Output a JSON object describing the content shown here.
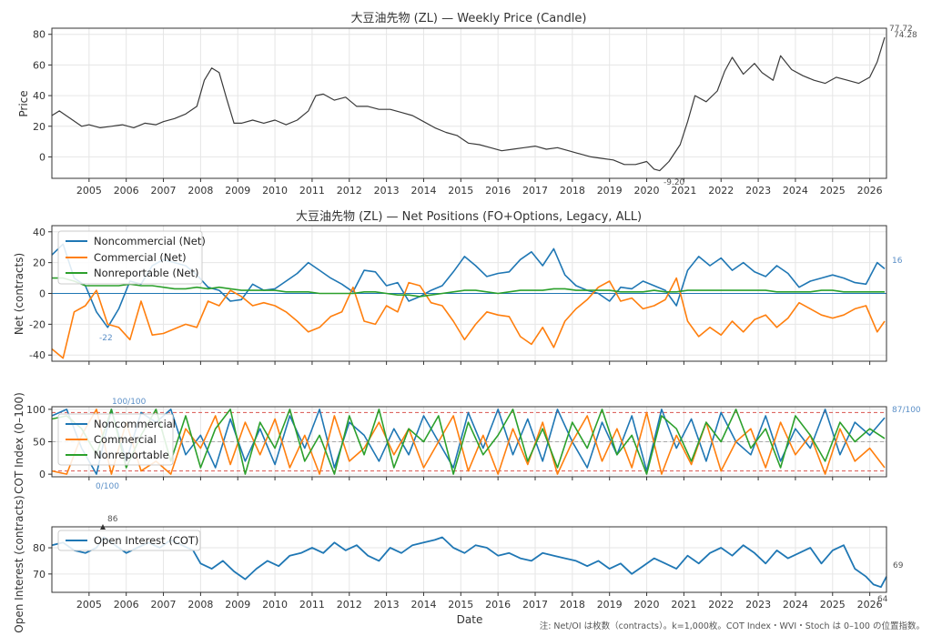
{
  "chart_data": [
    {
      "type": "line",
      "title": "大豆油先物 (ZL) — Weekly Price (Candle)",
      "xlabel": "",
      "ylabel": "Price",
      "x_ticks": [
        "2005",
        "2006",
        "2007",
        "2008",
        "2009",
        "2010",
        "2011",
        "2012",
        "2013",
        "2014",
        "2015",
        "2016",
        "2017",
        "2018",
        "2019",
        "2020",
        "2021",
        "2022",
        "2023",
        "2024",
        "2025",
        "2026"
      ],
      "y_ticks": [
        0,
        20,
        40,
        60,
        80
      ],
      "xlim": [
        2004.0,
        2026.45
      ],
      "ylim": [
        -14,
        84
      ],
      "grid": true,
      "series": [
        {
          "color": "#3a3a3a",
          "x": [
            2004.0,
            2004.2,
            2004.5,
            2004.8,
            2005.0,
            2005.3,
            2005.6,
            2005.9,
            2006.2,
            2006.5,
            2006.8,
            2007.0,
            2007.3,
            2007.6,
            2007.9,
            2008.1,
            2008.3,
            2008.5,
            2008.7,
            2008.9,
            2009.1,
            2009.4,
            2009.7,
            2010.0,
            2010.3,
            2010.6,
            2010.9,
            2011.1,
            2011.3,
            2011.6,
            2011.9,
            2012.2,
            2012.5,
            2012.8,
            2013.1,
            2013.4,
            2013.7,
            2014.0,
            2014.3,
            2014.6,
            2014.9,
            2015.2,
            2015.5,
            2015.8,
            2016.1,
            2016.4,
            2016.7,
            2017.0,
            2017.3,
            2017.6,
            2017.9,
            2018.2,
            2018.5,
            2018.8,
            2019.1,
            2019.4,
            2019.7,
            2020.0,
            2020.2,
            2020.35,
            2020.6,
            2020.9,
            2021.1,
            2021.3,
            2021.6,
            2021.9,
            2022.1,
            2022.3,
            2022.6,
            2022.9,
            2023.1,
            2023.4,
            2023.6,
            2023.9,
            2024.2,
            2024.5,
            2024.8,
            2025.1,
            2025.4,
            2025.7,
            2026.0,
            2026.2,
            2026.4
          ],
          "y": [
            27,
            30,
            25,
            20,
            21,
            19,
            20,
            21,
            19,
            22,
            21,
            23,
            25,
            28,
            33,
            50,
            58,
            55,
            38,
            22,
            22,
            24,
            22,
            24,
            21,
            24,
            30,
            40,
            41,
            37,
            39,
            33,
            33,
            31,
            31,
            29,
            27,
            23,
            19,
            16,
            14,
            9,
            8,
            6,
            4,
            5,
            6,
            7,
            5,
            6,
            4,
            2,
            0,
            -1,
            -2,
            -5,
            -5,
            -3,
            -8,
            -9,
            -3,
            8,
            23,
            40,
            36,
            43,
            56,
            65,
            54,
            61,
            55,
            50,
            66,
            57,
            53,
            50,
            48,
            52,
            50,
            48,
            52,
            62,
            78
          ]
        }
      ],
      "annotations": [
        "77.72",
        "74.28",
        "-9.20"
      ]
    },
    {
      "type": "line",
      "title": "大豆油先物 (ZL) — Net Positions (FO+Options, Legacy, ALL)",
      "ylabel": "Net (contracts)",
      "y_ticks": [
        -40,
        -20,
        0,
        20,
        40
      ],
      "ylim": [
        -44,
        44
      ],
      "grid": true,
      "legend": "top-left",
      "x": [
        2004.0,
        2004.3,
        2004.6,
        2004.9,
        2005.2,
        2005.5,
        2005.8,
        2006.1,
        2006.4,
        2006.7,
        2007.0,
        2007.3,
        2007.6,
        2007.9,
        2008.2,
        2008.5,
        2008.8,
        2009.1,
        2009.4,
        2009.7,
        2010.0,
        2010.3,
        2010.6,
        2010.9,
        2011.2,
        2011.5,
        2011.8,
        2012.1,
        2012.4,
        2012.7,
        2013.0,
        2013.3,
        2013.6,
        2013.9,
        2014.2,
        2014.5,
        2014.8,
        2015.1,
        2015.4,
        2015.7,
        2016.0,
        2016.3,
        2016.6,
        2016.9,
        2017.2,
        2017.5,
        2017.8,
        2018.1,
        2018.4,
        2018.7,
        2019.0,
        2019.3,
        2019.6,
        2019.9,
        2020.2,
        2020.5,
        2020.8,
        2021.1,
        2021.4,
        2021.7,
        2022.0,
        2022.3,
        2022.6,
        2022.9,
        2023.2,
        2023.5,
        2023.8,
        2024.1,
        2024.4,
        2024.7,
        2025.0,
        2025.3,
        2025.6,
        2025.9,
        2026.2,
        2026.4
      ],
      "series": [
        {
          "name": "Noncommercial (Net)",
          "color": "#1f77b4",
          "values": [
            25,
            32,
            10,
            5,
            -12,
            -22,
            -10,
            8,
            6,
            18,
            22,
            20,
            18,
            12,
            4,
            2,
            -5,
            -4,
            6,
            2,
            3,
            8,
            13,
            20,
            15,
            10,
            6,
            1,
            15,
            14,
            5,
            7,
            -5,
            -2,
            2,
            5,
            14,
            24,
            18,
            11,
            13,
            14,
            22,
            27,
            18,
            29,
            12,
            5,
            2,
            0,
            -5,
            4,
            3,
            8,
            5,
            2,
            -8,
            15,
            24,
            18,
            23,
            15,
            20,
            14,
            11,
            18,
            13,
            4,
            8,
            10,
            12,
            10,
            7,
            6,
            20,
            16
          ]
        },
        {
          "name": "Commercial (Net)",
          "color": "#ff7f0e",
          "values": [
            -36,
            -42,
            -12,
            -8,
            2,
            -20,
            -22,
            -30,
            -5,
            -27,
            -26,
            -23,
            -20,
            -22,
            -5,
            -8,
            2,
            -2,
            -8,
            -6,
            -8,
            -12,
            -18,
            -25,
            -22,
            -15,
            -12,
            4,
            -18,
            -20,
            -8,
            -12,
            7,
            5,
            -6,
            -8,
            -18,
            -30,
            -20,
            -12,
            -14,
            -15,
            -28,
            -33,
            -22,
            -35,
            -18,
            -10,
            -4,
            4,
            8,
            -5,
            -3,
            -10,
            -8,
            -4,
            10,
            -18,
            -28,
            -22,
            -27,
            -18,
            -25,
            -17,
            -14,
            -22,
            -16,
            -6,
            -10,
            -14,
            -16,
            -14,
            -10,
            -8,
            -25,
            -18
          ]
        },
        {
          "name": "Nonreportable (Net)",
          "color": "#2ca02c",
          "values": [
            10,
            10,
            8,
            5,
            5,
            5,
            5,
            6,
            5,
            5,
            4,
            3,
            3,
            4,
            3,
            4,
            3,
            2,
            2,
            2,
            2,
            1,
            1,
            1,
            0,
            0,
            0,
            0,
            1,
            1,
            0,
            -1,
            -1,
            -2,
            -1,
            0,
            1,
            2,
            2,
            1,
            0,
            1,
            2,
            2,
            2,
            3,
            3,
            2,
            2,
            2,
            2,
            1,
            1,
            1,
            2,
            1,
            1,
            2,
            2,
            2,
            2,
            2,
            2,
            2,
            2,
            1,
            1,
            1,
            1,
            2,
            2,
            1,
            1,
            1,
            1,
            1
          ]
        }
      ],
      "annotations": [
        "16",
        "-22"
      ]
    },
    {
      "type": "line",
      "title": "",
      "ylabel": "COT Index (0–100)",
      "y_ticks": [
        0,
        50,
        100
      ],
      "ylim": [
        -4,
        104
      ],
      "grid": true,
      "legend": "top-left",
      "reference_lines": [
        95,
        50,
        5
      ],
      "x": [
        2004.0,
        2004.4,
        2004.8,
        2005.2,
        2005.6,
        2006.0,
        2006.4,
        2006.8,
        2007.2,
        2007.6,
        2008.0,
        2008.4,
        2008.8,
        2009.2,
        2009.6,
        2010.0,
        2010.4,
        2010.8,
        2011.2,
        2011.6,
        2012.0,
        2012.4,
        2012.8,
        2013.2,
        2013.6,
        2014.0,
        2014.4,
        2014.8,
        2015.2,
        2015.6,
        2016.0,
        2016.4,
        2016.8,
        2017.2,
        2017.6,
        2018.0,
        2018.4,
        2018.8,
        2019.2,
        2019.6,
        2020.0,
        2020.4,
        2020.8,
        2021.2,
        2021.6,
        2022.0,
        2022.4,
        2022.8,
        2023.2,
        2023.6,
        2024.0,
        2024.4,
        2024.8,
        2025.2,
        2025.6,
        2026.0,
        2026.4
      ],
      "series": [
        {
          "name": "Noncommercial",
          "color": "#1f77b4",
          "values": [
            90,
            100,
            40,
            0,
            100,
            20,
            95,
            80,
            100,
            30,
            60,
            10,
            85,
            20,
            70,
            15,
            90,
            40,
            100,
            10,
            80,
            60,
            20,
            70,
            30,
            90,
            50,
            10,
            95,
            40,
            100,
            30,
            85,
            20,
            100,
            50,
            10,
            80,
            30,
            90,
            5,
            100,
            40,
            85,
            20,
            95,
            50,
            30,
            90,
            20,
            70,
            40,
            100,
            30,
            80,
            60,
            87
          ]
        },
        {
          "name": "Commercial",
          "color": "#ff7f0e",
          "values": [
            5,
            0,
            60,
            100,
            0,
            80,
            5,
            20,
            0,
            70,
            40,
            90,
            15,
            80,
            30,
            85,
            10,
            60,
            0,
            90,
            20,
            40,
            80,
            30,
            70,
            10,
            50,
            90,
            5,
            60,
            0,
            70,
            15,
            80,
            0,
            50,
            90,
            20,
            70,
            10,
            95,
            0,
            60,
            15,
            80,
            5,
            50,
            70,
            10,
            80,
            30,
            60,
            0,
            70,
            20,
            40,
            10
          ]
        },
        {
          "name": "Nonreportable",
          "color": "#2ca02c",
          "values": [
            85,
            90,
            70,
            30,
            100,
            10,
            60,
            100,
            20,
            90,
            10,
            70,
            100,
            0,
            80,
            40,
            100,
            20,
            60,
            0,
            90,
            30,
            100,
            10,
            70,
            50,
            90,
            0,
            80,
            30,
            60,
            100,
            20,
            70,
            10,
            80,
            40,
            100,
            30,
            60,
            0,
            90,
            70,
            20,
            80,
            50,
            100,
            40,
            70,
            10,
            90,
            60,
            20,
            80,
            50,
            70,
            55
          ]
        }
      ],
      "annotations": [
        "100/100",
        "0/100",
        "87/100"
      ]
    },
    {
      "type": "line",
      "title": "",
      "xlabel": "Date",
      "ylabel": "Open Interest (contracts)",
      "y_ticks": [
        70,
        80
      ],
      "ylim": [
        63,
        88
      ],
      "grid": true,
      "legend": "top-left",
      "series": [
        {
          "name": "Open Interest (COT)",
          "color": "#1f77b4",
          "x": [
            2004.0,
            2004.3,
            2004.6,
            2004.9,
            2005.2,
            2005.4,
            2005.7,
            2006.0,
            2006.3,
            2006.6,
            2006.9,
            2007.2,
            2007.5,
            2007.8,
            2008.0,
            2008.3,
            2008.6,
            2008.9,
            2009.2,
            2009.5,
            2009.8,
            2010.1,
            2010.4,
            2010.7,
            2011.0,
            2011.3,
            2011.6,
            2011.9,
            2012.2,
            2012.5,
            2012.8,
            2013.1,
            2013.4,
            2013.7,
            2014.0,
            2014.3,
            2014.5,
            2014.8,
            2015.1,
            2015.4,
            2015.7,
            2016.0,
            2016.3,
            2016.6,
            2016.9,
            2017.2,
            2017.5,
            2017.8,
            2018.1,
            2018.4,
            2018.7,
            2019.0,
            2019.3,
            2019.6,
            2019.9,
            2020.2,
            2020.5,
            2020.8,
            2021.1,
            2021.4,
            2021.7,
            2022.0,
            2022.3,
            2022.6,
            2022.9,
            2023.2,
            2023.5,
            2023.8,
            2024.1,
            2024.4,
            2024.7,
            2025.0,
            2025.3,
            2025.6,
            2025.9,
            2026.1,
            2026.3,
            2026.45
          ],
          "y": [
            81,
            82,
            79,
            78,
            80,
            84,
            81,
            78,
            80,
            82,
            80,
            83,
            81,
            79,
            74,
            72,
            75,
            71,
            68,
            72,
            75,
            73,
            77,
            78,
            80,
            78,
            82,
            79,
            81,
            77,
            75,
            80,
            78,
            81,
            82,
            83,
            84,
            80,
            78,
            81,
            80,
            77,
            78,
            76,
            75,
            78,
            77,
            76,
            75,
            73,
            75,
            72,
            74,
            70,
            73,
            76,
            74,
            72,
            77,
            74,
            78,
            80,
            77,
            81,
            78,
            74,
            79,
            76,
            78,
            80,
            74,
            79,
            81,
            72,
            69,
            66,
            65,
            69
          ]
        }
      ],
      "annotations": [
        "86",
        "69",
        "64"
      ]
    }
  ],
  "footnote": "注: Net/OI は枚数（contracts）。k=1,000枚。COT Index・WVI・Stoch は 0–100 の位置指数。"
}
